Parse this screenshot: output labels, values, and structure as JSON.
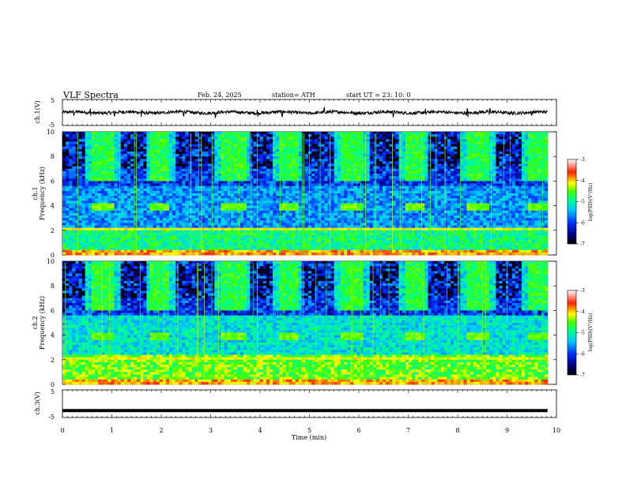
{
  "header": {
    "title": "VLF  Spectra",
    "date": "Feb. 24, 2025",
    "station": "station= ATH",
    "start": "start  UT  =     23: 10: 0"
  },
  "chart_data": [
    {
      "type": "line",
      "name": "ch1-waveform",
      "ylabel": "ch.1(V)",
      "xlim": [
        0,
        10
      ],
      "ylim": [
        -5,
        5
      ],
      "yticks": [
        "5",
        "-5"
      ],
      "baseline": 0,
      "wave_amplitude": 0.6,
      "spikes_min": [
        0.23,
        0.57,
        1.05,
        1.6,
        2.45,
        3.1,
        3.95,
        4.45,
        5.3,
        6.7,
        7.35,
        8.2,
        8.65,
        9.5
      ]
    },
    {
      "type": "heatmap",
      "name": "ch1-spectrogram",
      "ylabel": "ch.1\nFrequency (kHz)",
      "xlim": [
        0,
        9.82
      ],
      "ylim": [
        0,
        10
      ],
      "yticks": [
        "0",
        "2",
        "4",
        "6",
        "8",
        "10"
      ],
      "colorbar": {
        "label": "log(PSD)(V²/Hz)",
        "range": [
          -7,
          -3
        ],
        "ticks": [
          "-3",
          "-4",
          "-5",
          "-6",
          "-7"
        ]
      },
      "burst_windows_min": [
        [
          0.6,
          1.05
        ],
        [
          1.8,
          2.15
        ],
        [
          3.2,
          3.7
        ],
        [
          4.4,
          4.75
        ],
        [
          5.65,
          6.1
        ],
        [
          6.95,
          7.3
        ],
        [
          8.2,
          8.65
        ],
        [
          9.4,
          9.8
        ]
      ],
      "tone_band_khz": [
        3.7,
        4.3
      ],
      "noise_band_khz": [
        0,
        2.2
      ]
    },
    {
      "type": "heatmap",
      "name": "ch2-spectrogram",
      "ylabel": "ch.2\nFrequency (kHz)",
      "xlim": [
        0,
        9.82
      ],
      "ylim": [
        0,
        10
      ],
      "yticks": [
        "0",
        "2",
        "4",
        "6",
        "8",
        "10"
      ],
      "colorbar": {
        "label": "log(PSD)(V²/Hz)",
        "range": [
          -7,
          -3
        ],
        "ticks": [
          "-3",
          "-4",
          "-5",
          "-6",
          "-7"
        ]
      },
      "burst_windows_min": [
        [
          0.6,
          1.05
        ],
        [
          1.8,
          2.15
        ],
        [
          3.2,
          3.7
        ],
        [
          4.4,
          4.75
        ],
        [
          5.65,
          6.1
        ],
        [
          6.95,
          7.3
        ],
        [
          8.2,
          8.65
        ],
        [
          9.4,
          9.8
        ]
      ],
      "tone_band_khz": [
        3.7,
        4.3
      ],
      "noise_band_khz": [
        0,
        2.5
      ]
    },
    {
      "type": "line",
      "name": "ch3-waveform",
      "ylabel": "ch.3(V)",
      "xlabel": "Time  (min)",
      "xlim": [
        0,
        10
      ],
      "ylim": [
        -5,
        5
      ],
      "yticks": [
        "5",
        "-5"
      ],
      "xticks": [
        "0",
        "1",
        "2",
        "3",
        "4",
        "5",
        "6",
        "7",
        "8",
        "9",
        "10"
      ],
      "baseline": -2.5
    }
  ],
  "colors": {
    "background": "#ffffff",
    "axis": "#000000",
    "colormap": [
      "#000000",
      "#00008b",
      "#0030ff",
      "#00c8ff",
      "#00ff90",
      "#40ff00",
      "#ffff00",
      "#ff2000",
      "#ffffff"
    ]
  }
}
